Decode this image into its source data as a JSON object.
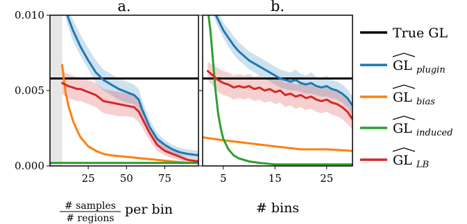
{
  "colors": {
    "true_gl": "#000000",
    "plugin": "#1f77b4",
    "bias": "#ff7f0e",
    "induced": "#2ca02c",
    "lb": "#d62728"
  },
  "legend": [
    {
      "key": "true",
      "base": "True GL",
      "sub": ""
    },
    {
      "key": "plugin",
      "base": "GL",
      "sub": "plugin"
    },
    {
      "key": "bias",
      "base": "GL",
      "sub": "bias"
    },
    {
      "key": "induced",
      "base": "GL",
      "sub": "induced"
    },
    {
      "key": "lb",
      "base": "GL",
      "sub": "LB"
    }
  ],
  "chart_data": [
    {
      "type": "line",
      "title": "a.",
      "xlabel_fraction_top": "# samples",
      "xlabel_fraction_bottom": "# regions",
      "xlabel_suffix": "per bin",
      "ylabel": "",
      "xlim": [
        0,
        97
      ],
      "ylim": [
        0,
        0.01
      ],
      "xticks": [
        "25",
        "50",
        "75"
      ],
      "yticks": [
        "0.000",
        "0.005",
        "0.010"
      ],
      "shaded_region": [
        0,
        8
      ],
      "true_gl": 0.0058,
      "series": [
        {
          "key": "plugin",
          "x": [
            10,
            12,
            15,
            20,
            25,
            30,
            35,
            40,
            45,
            50,
            55,
            58,
            60,
            65,
            70,
            75,
            80,
            85,
            90,
            97
          ],
          "y": [
            0.0104,
            0.0098,
            0.009,
            0.0079,
            0.007,
            0.0062,
            0.0057,
            0.0054,
            0.0051,
            0.0049,
            0.0047,
            0.0044,
            0.0038,
            0.0026,
            0.0018,
            0.0014,
            0.0011,
            0.0009,
            0.0008,
            0.0007
          ],
          "lo": [
            0.01,
            0.0092,
            0.0083,
            0.0073,
            0.0064,
            0.0055,
            0.005,
            0.0047,
            0.0044,
            0.0042,
            0.0041,
            0.0038,
            0.0033,
            0.0022,
            0.0015,
            0.0011,
            0.0008,
            0.0007,
            0.0006,
            0.0005
          ],
          "hi": [
            0.0108,
            0.0103,
            0.0097,
            0.0087,
            0.0078,
            0.007,
            0.0064,
            0.0061,
            0.0058,
            0.0056,
            0.0054,
            0.0051,
            0.0044,
            0.0031,
            0.0022,
            0.0017,
            0.0014,
            0.0012,
            0.0011,
            0.001
          ]
        },
        {
          "key": "bias",
          "x": [
            8,
            9,
            10,
            12,
            15,
            18,
            20,
            25,
            30,
            35,
            40,
            50,
            60,
            70,
            80,
            90,
            97
          ],
          "y": [
            0.0067,
            0.0058,
            0.005,
            0.004,
            0.003,
            0.0023,
            0.0019,
            0.0013,
            0.001,
            0.0008,
            0.0007,
            0.0006,
            0.0005,
            0.0004,
            0.0003,
            0.0002,
            0.0002
          ]
        },
        {
          "key": "induced",
          "x": [
            0,
            20,
            40,
            60,
            80,
            97
          ],
          "y": [
            0.0002,
            0.0002,
            0.0002,
            0.0002,
            0.0002,
            0.0002
          ]
        },
        {
          "key": "lb",
          "x": [
            8,
            10,
            12,
            15,
            18,
            20,
            25,
            30,
            35,
            40,
            45,
            50,
            55,
            58,
            60,
            65,
            70,
            75,
            80,
            85,
            90,
            97
          ],
          "y": [
            0.0055,
            0.0054,
            0.0053,
            0.0052,
            0.0051,
            0.0051,
            0.0049,
            0.0047,
            0.0043,
            0.0042,
            0.0041,
            0.004,
            0.0039,
            0.0036,
            0.0032,
            0.0022,
            0.0014,
            0.001,
            0.0008,
            0.0006,
            0.0004,
            0.0003
          ],
          "lo": [
            0.0048,
            0.0046,
            0.0045,
            0.0044,
            0.0043,
            0.0043,
            0.0041,
            0.0039,
            0.0035,
            0.0034,
            0.0033,
            0.0033,
            0.0032,
            0.0029,
            0.0026,
            0.0017,
            0.001,
            0.0007,
            0.0005,
            0.0004,
            0.0002,
            0.0001
          ],
          "hi": [
            0.0062,
            0.0062,
            0.0061,
            0.006,
            0.0059,
            0.0059,
            0.0057,
            0.0055,
            0.0051,
            0.005,
            0.0049,
            0.0048,
            0.0047,
            0.0044,
            0.0039,
            0.0027,
            0.0018,
            0.0013,
            0.0011,
            0.0008,
            0.0006,
            0.0005
          ]
        }
      ]
    },
    {
      "type": "line",
      "title": "b.",
      "xlabel": "# bins",
      "ylabel": "",
      "xlim": [
        1,
        30
      ],
      "ylim": [
        0,
        0.01
      ],
      "xticks": [
        "5",
        "15",
        "25"
      ],
      "yticks": [
        "0.000",
        "0.005",
        "0.010"
      ],
      "true_gl": 0.0058,
      "series": [
        {
          "key": "plugin",
          "x": [
            3,
            4,
            5,
            6,
            7,
            8,
            9,
            10,
            11,
            12,
            13,
            14,
            15,
            16,
            17,
            18,
            19,
            20,
            21,
            22,
            23,
            24,
            25,
            26,
            27,
            28,
            29,
            30
          ],
          "y": [
            0.0104,
            0.0097,
            0.009,
            0.0085,
            0.008,
            0.0076,
            0.0073,
            0.007,
            0.0068,
            0.0066,
            0.0064,
            0.0062,
            0.006,
            0.0058,
            0.0057,
            0.0056,
            0.0057,
            0.0055,
            0.0054,
            0.0055,
            0.0053,
            0.0052,
            0.0053,
            0.0051,
            0.005,
            0.0048,
            0.0045,
            0.004
          ],
          "lo": [
            0.01,
            0.0092,
            0.0085,
            0.0079,
            0.0074,
            0.007,
            0.0067,
            0.0064,
            0.0062,
            0.006,
            0.0058,
            0.0056,
            0.0054,
            0.0052,
            0.0051,
            0.005,
            0.005,
            0.0049,
            0.0048,
            0.0048,
            0.0047,
            0.0046,
            0.0046,
            0.0045,
            0.0044,
            0.0042,
            0.0039,
            0.0034
          ],
          "hi": [
            0.0108,
            0.0102,
            0.0095,
            0.0091,
            0.0086,
            0.0082,
            0.0079,
            0.0076,
            0.0074,
            0.0072,
            0.007,
            0.0068,
            0.0066,
            0.0064,
            0.0063,
            0.0062,
            0.0064,
            0.0061,
            0.006,
            0.0062,
            0.0059,
            0.0058,
            0.006,
            0.0057,
            0.0056,
            0.0054,
            0.0051,
            0.0046
          ]
        },
        {
          "key": "bias",
          "x": [
            1,
            3,
            5,
            10,
            15,
            20,
            25,
            30
          ],
          "y": [
            0.0019,
            0.0018,
            0.0017,
            0.0015,
            0.0013,
            0.0011,
            0.0011,
            0.001
          ]
        },
        {
          "key": "induced",
          "x": [
            2,
            2.5,
            3,
            3.5,
            4,
            4.5,
            5,
            6,
            7,
            8,
            10,
            12,
            15,
            20,
            25,
            30
          ],
          "y": [
            0.0104,
            0.009,
            0.007,
            0.005,
            0.0035,
            0.0025,
            0.0018,
            0.0011,
            0.0007,
            0.0005,
            0.0003,
            0.0002,
            0.0001,
            0.0001,
            0.0001,
            0.0001
          ]
        },
        {
          "key": "lb",
          "x": [
            2,
            3,
            4,
            5,
            6,
            7,
            8,
            9,
            10,
            11,
            12,
            13,
            14,
            15,
            16,
            17,
            18,
            19,
            20,
            21,
            22,
            23,
            24,
            25,
            26,
            27,
            28,
            29,
            30
          ],
          "y": [
            0.0063,
            0.006,
            0.0057,
            0.0055,
            0.0054,
            0.0052,
            0.0053,
            0.0052,
            0.0053,
            0.0051,
            0.0052,
            0.005,
            0.0051,
            0.0049,
            0.005,
            0.0047,
            0.0048,
            0.0046,
            0.0047,
            0.0045,
            0.0046,
            0.0044,
            0.0043,
            0.0044,
            0.0042,
            0.0041,
            0.0039,
            0.0036,
            0.0031
          ],
          "lo": [
            0.0057,
            0.0053,
            0.0049,
            0.0047,
            0.0046,
            0.0044,
            0.0045,
            0.0044,
            0.0045,
            0.0043,
            0.0044,
            0.0042,
            0.0043,
            0.0041,
            0.0042,
            0.0039,
            0.004,
            0.0038,
            0.0039,
            0.0037,
            0.0038,
            0.0036,
            0.0035,
            0.0036,
            0.0034,
            0.0033,
            0.0031,
            0.0028,
            0.0024
          ],
          "hi": [
            0.0069,
            0.0067,
            0.0065,
            0.0063,
            0.0062,
            0.006,
            0.0061,
            0.006,
            0.0061,
            0.0059,
            0.006,
            0.0058,
            0.0059,
            0.0057,
            0.0058,
            0.0055,
            0.0056,
            0.0054,
            0.0055,
            0.0053,
            0.0054,
            0.0052,
            0.0051,
            0.0052,
            0.005,
            0.0049,
            0.0047,
            0.0044,
            0.0038
          ]
        }
      ]
    }
  ]
}
